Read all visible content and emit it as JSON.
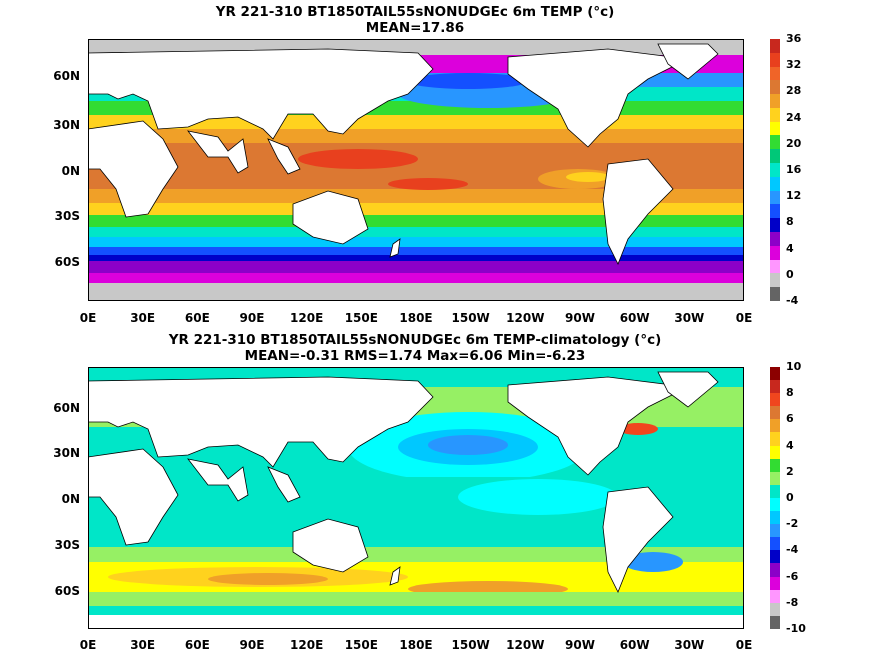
{
  "panels": [
    {
      "title_line1": "YR 221-310 BT1850TAIL55sNONUDGEc 6m TEMP (°c)",
      "title_line2": "MEAN=17.86",
      "colorbar_labels": [
        "36",
        "32",
        "28",
        "24",
        "20",
        "16",
        "12",
        "8",
        "4",
        "0",
        "-4"
      ],
      "colorbar_colors": [
        "#c8281e",
        "#e8401e",
        "#f06428",
        "#dc7832",
        "#f0a028",
        "#ffd21e",
        "#ffff00",
        "#32dc32",
        "#00c878",
        "#00e6c8",
        "#00c8ff",
        "#2896ff",
        "#1450ff",
        "#0000c8",
        "#8c00c8",
        "#dc00dc",
        "#ff96ff",
        "#c8c8c8",
        "#646464"
      ]
    },
    {
      "title_line1": "YR 221-310 BT1850TAIL55sNONUDGEc 6m TEMP-climatology (°c)",
      "title_line2": "MEAN=-0.31   RMS=1.74   Max=6.06   Min=-6.23",
      "colorbar_labels": [
        "10",
        "8",
        "6",
        "4",
        "2",
        "0",
        "-2",
        "-4",
        "-6",
        "-8",
        "-10"
      ],
      "colorbar_colors": [
        "#8c0000",
        "#c8281e",
        "#f0461e",
        "#dc7832",
        "#f0a028",
        "#ffd21e",
        "#ffff00",
        "#32dc32",
        "#96f064",
        "#00e6c8",
        "#00ffff",
        "#00c8ff",
        "#2896ff",
        "#1450ff",
        "#0000c8",
        "#8c00c8",
        "#dc00dc",
        "#ff96ff",
        "#c8c8c8",
        "#646464"
      ]
    }
  ],
  "y_ticks": [
    "60N",
    "30N",
    "0N",
    "30S",
    "60S"
  ],
  "x_ticks": [
    "0E",
    "30E",
    "60E",
    "90E",
    "120E",
    "150E",
    "180E",
    "150W",
    "120W",
    "90W",
    "60W",
    "30W",
    "0E"
  ]
}
